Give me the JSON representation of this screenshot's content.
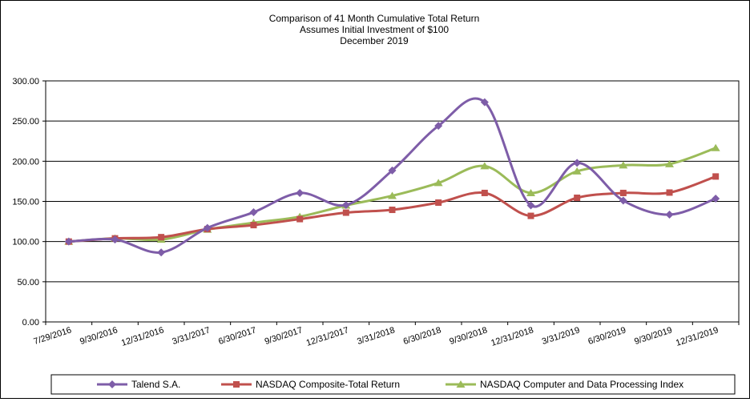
{
  "chart_data": {
    "type": "line",
    "title": [
      "Comparison  of 41 Month Cumulative  Total Return",
      "Assumes Initial Investment  of $100",
      "December  2019"
    ],
    "xlabel": "",
    "ylabel": "",
    "categories": [
      "7/29/2016",
      "9/30/2016",
      "12/31/2016",
      "3/31/2017",
      "6/30/2017",
      "9/30/2017",
      "12/31/2017",
      "3/31/2018",
      "6/30/2018",
      "9/30/2018",
      "12/31/2018",
      "3/31/2019",
      "6/30/2019",
      "9/30/2019",
      "12/31/2019"
    ],
    "ylim": [
      0,
      300
    ],
    "yticks": [
      "0.00",
      "50.00",
      "100.00",
      "150.00",
      "200.00",
      "250.00",
      "300.00"
    ],
    "grid": "horizontal",
    "legend_position": "bottom",
    "series": [
      {
        "name": "Talend S.A.",
        "color": "#7E5DA8",
        "marker": "diamond",
        "values": [
          100.0,
          102.5,
          86.5,
          117.0,
          136.5,
          160.5,
          145.5,
          188.5,
          244.0,
          273.5,
          145.0,
          198.0,
          151.0,
          133.5,
          153.5
        ]
      },
      {
        "name": "NASDAQ Composite-Total Return",
        "color": "#C0504D",
        "marker": "square",
        "values": [
          100.0,
          104.0,
          105.5,
          115.5,
          120.5,
          128.0,
          136.0,
          139.5,
          148.5,
          160.5,
          132.0,
          154.5,
          160.5,
          161.0,
          181.0
        ]
      },
      {
        "name": "NASDAQ Computer and Data Processing Index",
        "color": "#9BBB59",
        "marker": "triangle",
        "values": [
          100.0,
          104.0,
          102.5,
          115.0,
          123.5,
          131.0,
          145.0,
          157.0,
          173.0,
          194.0,
          160.5,
          187.5,
          195.0,
          196.5,
          216.5
        ]
      }
    ]
  }
}
